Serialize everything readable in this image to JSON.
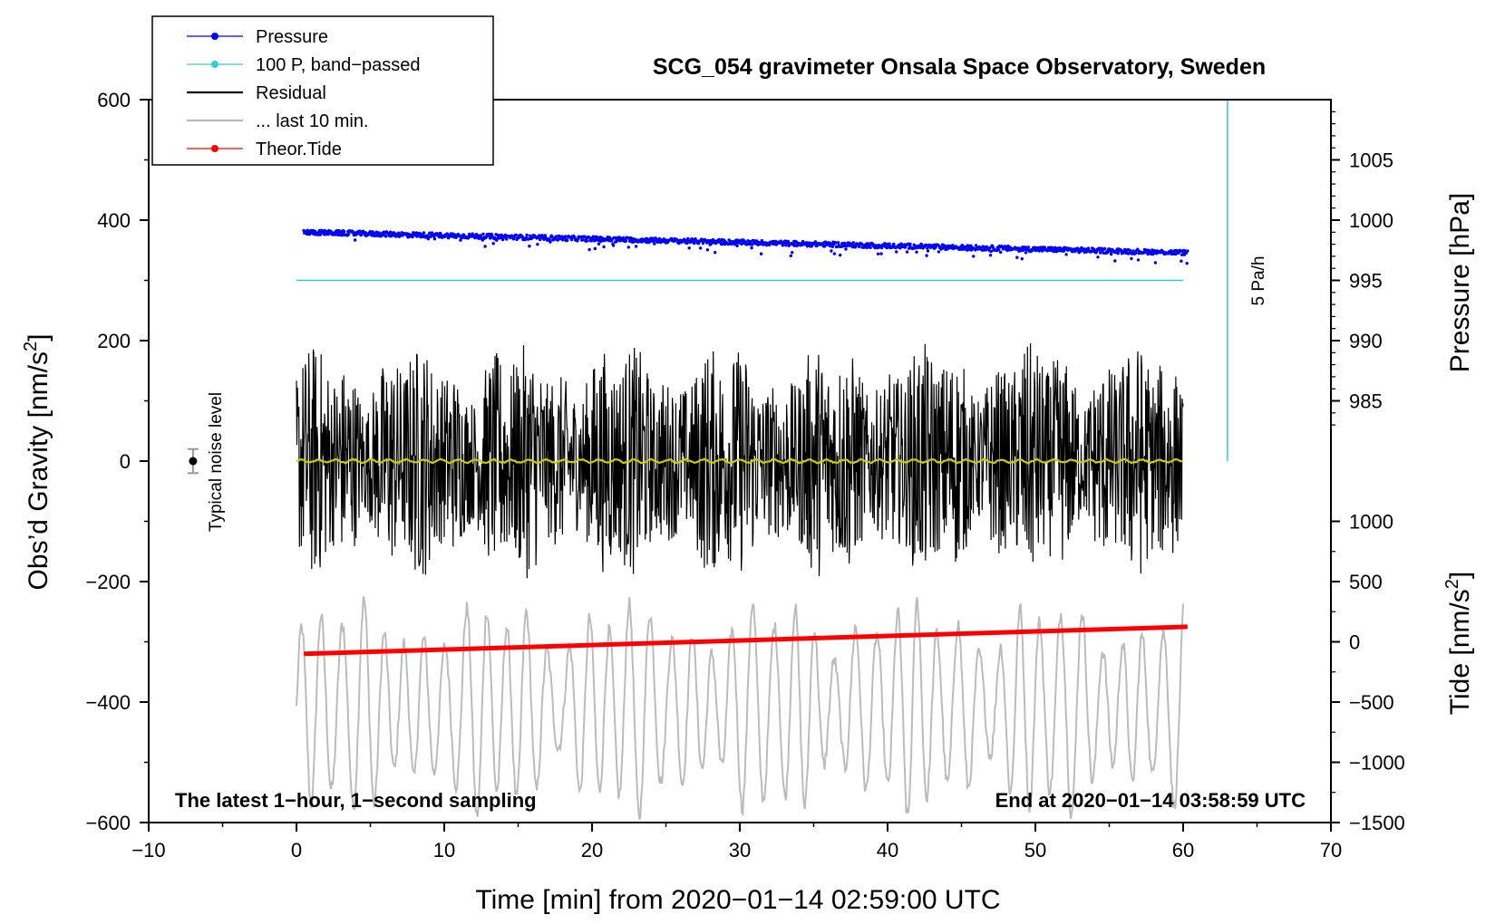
{
  "chart_data": {
    "type": "line",
    "title": "SCG_054 gravimeter Onsala Space Observatory, Sweden",
    "xlabel": "Time [min] from 2020−01−14 02:59:00 UTC",
    "ylabel_left": "Obs’d Gravity [nm/s²]",
    "ylabel_right_upper": "Pressure [hPa]",
    "ylabel_right_lower": "Tide [nm/s²]",
    "xlim": [
      -10,
      70
    ],
    "ylim_left": [
      -600,
      600
    ],
    "x_ticks": [
      "−10",
      "0",
      "10",
      "20",
      "30",
      "40",
      "50",
      "60",
      "70"
    ],
    "x_tick_values": [
      -10,
      0,
      10,
      20,
      30,
      40,
      50,
      60,
      70
    ],
    "y_ticks_left": [
      "600",
      "400",
      "200",
      "0",
      "−200",
      "−400",
      "−600"
    ],
    "y_tick_values_left": [
      600,
      400,
      200,
      0,
      -200,
      -400,
      -600
    ],
    "pressure_axis": {
      "ticks": [
        "1005",
        "1000",
        "995",
        "990",
        "985"
      ],
      "values": [
        1005,
        1000,
        995,
        990,
        985
      ],
      "gravity_at_1000": 400,
      "gravity_per_hpa": 20
    },
    "tide_axis": {
      "ticks": [
        "1000",
        "500",
        "0",
        "−500",
        "−1000",
        "−1500"
      ],
      "values": [
        1000,
        500,
        0,
        -500,
        -1000,
        -1500
      ],
      "gravity_at_0": -300,
      "gravity_per_unit": 0.2
    },
    "legend": {
      "position": "top-left",
      "entries": [
        {
          "label": "Pressure",
          "color": "#0000ff",
          "style": "line-dot"
        },
        {
          "label": "100 P, band−passed",
          "color": "#33cccc",
          "style": "line-dot"
        },
        {
          "label": "Residual",
          "color": "#000000",
          "style": "line"
        },
        {
          "label": "... last 10 min.",
          "color": "#bbbbbb",
          "style": "line"
        },
        {
          "label": "Theor.Tide",
          "color": "#ff0000",
          "style": "line-dot"
        }
      ]
    },
    "series": [
      {
        "name": "Pressure",
        "color": "#0000ff",
        "x_range": [
          0.5,
          60.3
        ],
        "pressure_hpa_start": 999.0,
        "pressure_hpa_end": 997.3,
        "scatter_hpa": 0.4
      },
      {
        "name": "100 P, band−passed",
        "color": "#33cccc",
        "x_range": [
          0,
          60
        ],
        "gravity_value": 300
      },
      {
        "name": "Residual",
        "color": "#000000",
        "x_range": [
          0,
          60
        ],
        "amplitude_nm_s2": 180,
        "min": -240,
        "max": 255
      },
      {
        "name": "Residual smoothed",
        "color": "#cccc00",
        "x_range": [
          0,
          60
        ],
        "value": 0
      },
      {
        "name": "... last 10 min.",
        "color": "#bbbbbb",
        "x_range": [
          0,
          60
        ],
        "center": -410,
        "amplitude_nm_s2": 160
      },
      {
        "name": "Theor.Tide",
        "color": "#ff0000",
        "x": [
          0.5,
          60.3
        ],
        "tide_nm_s2": [
          -100,
          125
        ]
      }
    ],
    "noise_marker": {
      "x": -7,
      "y": 0,
      "error": 20,
      "label": "Typical noise level"
    },
    "rate_marker": {
      "x": 63,
      "y_range": [
        0,
        600
      ],
      "label": "5 Pa/h",
      "color": "#33cccc"
    },
    "footer_left": "The latest 1−hour, 1−second sampling",
    "footer_right": "End at 2020−01−14 03:58:59 UTC"
  }
}
